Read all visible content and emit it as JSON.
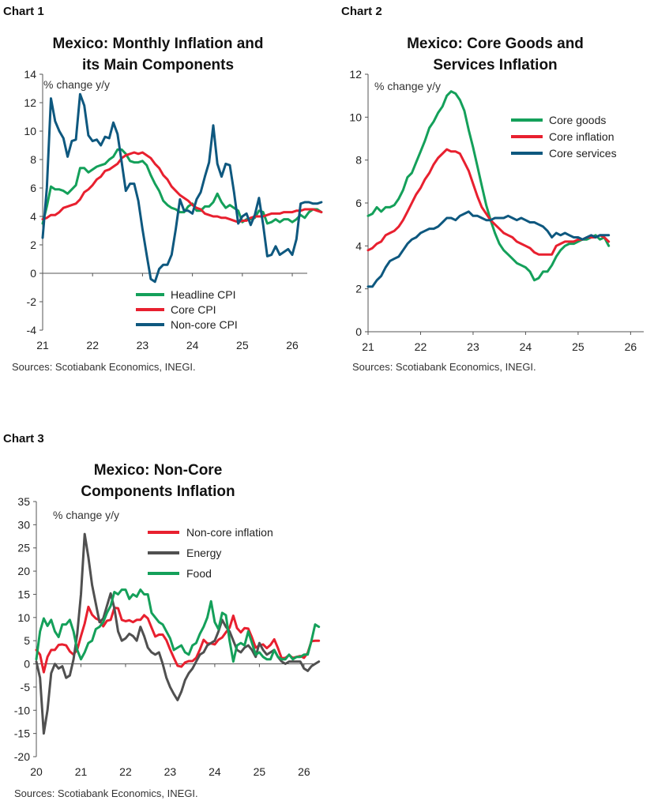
{
  "labels": {
    "chart1": "Chart 1",
    "chart2": "Chart 2",
    "chart3": "Chart 3"
  },
  "chart_data": [
    {
      "id": "chart1",
      "type": "line",
      "title_line1": "Mexico: Monthly Inflation and",
      "title_line2": "its Main Components",
      "unit_label": "% change y/y",
      "source": "Sources: Scotiabank Economics, INEGI.",
      "xlim": [
        2021.0,
        2026.3
      ],
      "ylim": [
        -4,
        14
      ],
      "yticks": [
        -4,
        -2,
        0,
        2,
        4,
        6,
        8,
        10,
        12,
        14
      ],
      "xticks": [
        {
          "value": 2021,
          "label": "21"
        },
        {
          "value": 2022,
          "label": "22"
        },
        {
          "value": 2023,
          "label": "23"
        },
        {
          "value": 2024,
          "label": "24"
        },
        {
          "value": 2025,
          "label": "25"
        },
        {
          "value": 2026,
          "label": "26"
        }
      ],
      "x_start": 2021.0,
      "x_step": 0.08333,
      "legend": {
        "position": "bottom-right"
      },
      "series": [
        {
          "name": "Headline CPI",
          "color": "#14a05a",
          "values": [
            3.5,
            4.7,
            6.1,
            5.9,
            5.9,
            5.8,
            5.6,
            5.9,
            6.2,
            7.4,
            7.4,
            7.1,
            7.3,
            7.5,
            7.6,
            7.7,
            8.0,
            8.2,
            8.7,
            8.7,
            8.4,
            7.9,
            7.8,
            7.8,
            7.9,
            7.6,
            6.9,
            6.3,
            5.8,
            5.1,
            4.8,
            4.6,
            4.5,
            4.3,
            4.3,
            4.7,
            4.9,
            4.4,
            4.4,
            4.7,
            4.7,
            5.0,
            5.6,
            5.0,
            4.6,
            4.8,
            4.6,
            4.4,
            3.6,
            3.8,
            3.8,
            3.9,
            4.4,
            4.3,
            3.5,
            3.6,
            3.8,
            3.6,
            3.8,
            3.8,
            3.6,
            3.8,
            4.1,
            3.9,
            4.3,
            4.5,
            4.5,
            4.3
          ]
        },
        {
          "name": "Core CPI",
          "color": "#e8202f",
          "values": [
            3.8,
            3.9,
            4.1,
            4.1,
            4.3,
            4.6,
            4.7,
            4.8,
            4.9,
            5.2,
            5.7,
            5.9,
            6.2,
            6.6,
            6.8,
            7.2,
            7.3,
            7.5,
            7.7,
            8.1,
            8.3,
            8.4,
            8.5,
            8.4,
            8.5,
            8.3,
            8.1,
            7.7,
            7.4,
            6.9,
            6.6,
            6.1,
            5.8,
            5.5,
            5.3,
            5.1,
            4.8,
            4.6,
            4.5,
            4.2,
            4.1,
            4.0,
            4.0,
            3.9,
            3.9,
            3.8,
            3.7,
            3.6,
            3.7,
            3.7,
            3.9,
            4.0,
            4.0,
            4.0,
            4.1,
            4.2,
            4.2,
            4.2,
            4.3,
            4.3,
            4.3,
            4.4,
            4.4,
            4.5,
            4.5,
            4.5,
            4.4,
            4.3
          ]
        },
        {
          "name": "Non-core CPI",
          "color": "#0e587f",
          "values": [
            2.5,
            6.0,
            12.3,
            10.7,
            10.0,
            9.5,
            8.2,
            9.3,
            9.4,
            12.6,
            11.8,
            9.7,
            9.3,
            9.4,
            9.0,
            9.6,
            9.5,
            10.6,
            9.8,
            7.8,
            5.8,
            6.3,
            6.3,
            5.1,
            3.1,
            1.3,
            -0.4,
            -0.6,
            0.3,
            0.6,
            0.6,
            1.3,
            3.1,
            5.2,
            4.4,
            4.4,
            4.2,
            5.2,
            5.7,
            6.8,
            7.8,
            10.4,
            7.7,
            6.8,
            7.7,
            7.6,
            5.7,
            3.5,
            4.0,
            4.2,
            3.4,
            4.1,
            5.3,
            3.4,
            1.2,
            1.3,
            1.9,
            1.3,
            1.5,
            1.7,
            1.3,
            2.4,
            4.9,
            5.0,
            5.0,
            4.9,
            4.9,
            5.0
          ]
        }
      ]
    },
    {
      "id": "chart2",
      "type": "line",
      "title_line1": "Mexico: Core Goods and",
      "title_line2": "Services Inflation",
      "unit_label": "% change y/y",
      "source": "Sources: Scotiabank Economics, INEGI.",
      "xlim": [
        2021.0,
        2026.25
      ],
      "ylim": [
        0,
        12
      ],
      "yticks": [
        0,
        2,
        4,
        6,
        8,
        10,
        12
      ],
      "xticks": [
        {
          "value": 2021,
          "label": "21"
        },
        {
          "value": 2022,
          "label": "22"
        },
        {
          "value": 2023,
          "label": "23"
        },
        {
          "value": 2024,
          "label": "24"
        },
        {
          "value": 2025,
          "label": "25"
        },
        {
          "value": 2026,
          "label": "26"
        }
      ],
      "x_start": 2021.0,
      "x_step": 0.08333,
      "legend": {
        "position": "top-right"
      },
      "series": [
        {
          "name": "Core goods",
          "color": "#14a05a",
          "values": [
            5.4,
            5.5,
            5.8,
            5.6,
            5.8,
            5.8,
            5.9,
            6.2,
            6.6,
            7.2,
            7.4,
            7.9,
            8.4,
            8.9,
            9.5,
            9.8,
            10.2,
            10.5,
            11.0,
            11.2,
            11.1,
            10.8,
            10.3,
            9.4,
            8.6,
            7.7,
            6.8,
            5.9,
            5.2,
            4.6,
            4.1,
            3.8,
            3.6,
            3.4,
            3.2,
            3.1,
            3.0,
            2.8,
            2.4,
            2.5,
            2.8,
            2.8,
            3.1,
            3.5,
            3.8,
            4.0,
            4.1,
            4.1,
            4.2,
            4.3,
            4.3,
            4.4,
            4.5,
            4.3,
            4.4,
            4.0
          ]
        },
        {
          "name": "Core inflation",
          "color": "#e8202f",
          "values": [
            3.8,
            3.9,
            4.1,
            4.2,
            4.5,
            4.6,
            4.7,
            4.9,
            5.2,
            5.6,
            6.0,
            6.4,
            6.7,
            7.1,
            7.4,
            7.8,
            8.1,
            8.3,
            8.5,
            8.4,
            8.4,
            8.3,
            7.9,
            7.5,
            6.9,
            6.3,
            5.8,
            5.5,
            5.2,
            5.0,
            4.8,
            4.6,
            4.5,
            4.4,
            4.2,
            4.1,
            4.0,
            3.9,
            3.7,
            3.6,
            3.6,
            3.6,
            3.6,
            4.0,
            4.1,
            4.2,
            4.2,
            4.2,
            4.3,
            4.3,
            4.4,
            4.4,
            4.4,
            4.5,
            4.4,
            4.2
          ]
        },
        {
          "name": "Core services",
          "color": "#0e587f",
          "values": [
            2.1,
            2.1,
            2.4,
            2.6,
            3.0,
            3.3,
            3.4,
            3.5,
            3.8,
            4.1,
            4.3,
            4.4,
            4.6,
            4.7,
            4.8,
            4.8,
            4.9,
            5.1,
            5.3,
            5.3,
            5.2,
            5.4,
            5.5,
            5.6,
            5.4,
            5.4,
            5.3,
            5.2,
            5.2,
            5.3,
            5.3,
            5.3,
            5.4,
            5.3,
            5.2,
            5.3,
            5.2,
            5.1,
            5.1,
            5.0,
            4.9,
            4.7,
            4.4,
            4.6,
            4.5,
            4.6,
            4.5,
            4.4,
            4.4,
            4.3,
            4.4,
            4.5,
            4.4,
            4.5,
            4.5,
            4.5
          ]
        }
      ]
    },
    {
      "id": "chart3",
      "type": "line",
      "title_line1": "Mexico: Non-Core",
      "title_line2": "Components Inflation",
      "unit_label": "% change y/y",
      "source": "Sources: Scotiabank Economics, INEGI.",
      "xlim": [
        2020.0,
        2026.25
      ],
      "ylim": [
        -20,
        35
      ],
      "yticks": [
        -20,
        -15,
        -10,
        -5,
        0,
        5,
        10,
        15,
        20,
        25,
        30,
        35
      ],
      "xticks": [
        {
          "value": 2020,
          "label": "20"
        },
        {
          "value": 2021,
          "label": "21"
        },
        {
          "value": 2022,
          "label": "22"
        },
        {
          "value": 2023,
          "label": "23"
        },
        {
          "value": 2024,
          "label": "24"
        },
        {
          "value": 2025,
          "label": "25"
        },
        {
          "value": 2026,
          "label": "26"
        }
      ],
      "x_start": 2020.0,
      "x_step": 0.08333,
      "legend": {
        "position": "top-right"
      },
      "series": [
        {
          "name": "Non-core inflation",
          "color": "#e8202f",
          "values": [
            3.0,
            2.0,
            -1.8,
            1.5,
            3.0,
            3.0,
            4.1,
            4.2,
            4.0,
            2.7,
            2.0,
            3.1,
            6.0,
            8.7,
            12.3,
            10.6,
            9.8,
            9.4,
            8.1,
            9.3,
            9.5,
            12.1,
            12.0,
            9.5,
            9.2,
            9.4,
            9.0,
            9.5,
            9.5,
            10.5,
            9.8,
            7.8,
            5.9,
            6.3,
            6.3,
            5.1,
            3.1,
            1.3,
            -0.4,
            -0.6,
            0.3,
            0.6,
            0.6,
            1.3,
            3.1,
            5.2,
            4.4,
            4.4,
            4.2,
            5.2,
            5.7,
            6.8,
            7.8,
            10.4,
            7.7,
            6.8,
            7.7,
            7.6,
            5.7,
            3.5,
            4.0,
            4.2,
            3.4,
            4.1,
            5.3,
            3.4,
            1.2,
            1.3,
            1.9,
            1.3,
            1.5,
            1.7,
            1.3,
            2.4,
            4.9,
            5.0,
            5.0
          ]
        },
        {
          "name": "Energy",
          "color": "#505050",
          "values": [
            0.5,
            -3.0,
            -15.0,
            -10.0,
            -2.0,
            0.0,
            -1.0,
            -0.5,
            -3.0,
            -2.5,
            1.0,
            6.5,
            15.0,
            28.0,
            23.0,
            17.0,
            13.0,
            9.0,
            9.8,
            12.5,
            15.2,
            12.0,
            7.0,
            5.0,
            5.5,
            6.5,
            6.0,
            5.0,
            8.0,
            6.0,
            3.5,
            2.5,
            2.0,
            2.5,
            0.0,
            -3.0,
            -5.0,
            -6.5,
            -7.8,
            -6.0,
            -3.5,
            -2.0,
            -1.0,
            0.5,
            2.0,
            2.5,
            4.0,
            4.5,
            5.0,
            7.0,
            9.5,
            8.0,
            7.0,
            5.0,
            3.0,
            2.5,
            3.5,
            4.0,
            3.0,
            1.5,
            4.5,
            3.0,
            2.0,
            2.5,
            3.0,
            1.5,
            0.5,
            0.0,
            0.5,
            0.5,
            0.5,
            0.5,
            -1.0,
            -1.5,
            -0.5,
            0.0,
            0.5
          ]
        },
        {
          "name": "Food",
          "color": "#14a05a",
          "values": [
            1.0,
            7.0,
            9.8,
            8.2,
            9.5,
            7.0,
            5.8,
            8.5,
            8.5,
            9.5,
            7.0,
            3.0,
            1.0,
            2.5,
            4.5,
            5.0,
            7.5,
            8.0,
            9.0,
            11.0,
            12.5,
            15.5,
            15.0,
            16.0,
            16.0,
            14.0,
            15.0,
            14.5,
            16.0,
            15.0,
            15.0,
            11.0,
            10.0,
            9.0,
            8.5,
            7.0,
            5.5,
            3.0,
            3.5,
            4.0,
            2.5,
            2.0,
            4.0,
            4.5,
            6.5,
            8.0,
            10.0,
            13.5,
            9.0,
            7.5,
            11.0,
            10.5,
            5.0,
            0.5,
            4.0,
            4.5,
            4.0,
            7.0,
            4.5,
            2.0,
            2.5,
            1.5,
            1.0,
            1.0,
            3.0,
            1.5,
            1.0,
            1.0,
            2.0,
            1.0,
            1.5,
            1.5,
            2.0,
            2.0,
            5.0,
            8.5,
            8.0
          ]
        }
      ]
    }
  ]
}
